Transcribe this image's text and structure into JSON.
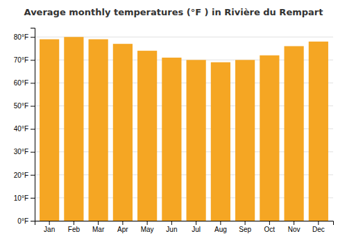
{
  "chart_data": {
    "type": "bar",
    "title": "Average monthly temperatures (°F ) in Rivière du Rempart",
    "categories": [
      "Jan",
      "Feb",
      "Mar",
      "Apr",
      "May",
      "Jun",
      "Jul",
      "Aug",
      "Sep",
      "Oct",
      "Nov",
      "Dec"
    ],
    "values": [
      79,
      80,
      79,
      77,
      74,
      71,
      70,
      69,
      70,
      72,
      76,
      78
    ],
    "color": "#F5A623",
    "ylim": [
      0,
      84
    ],
    "yticks": [
      {
        "value": 0,
        "label": "0°F"
      },
      {
        "value": 10,
        "label": "10°F"
      },
      {
        "value": 20,
        "label": "20°F"
      },
      {
        "value": 30,
        "label": "30°F"
      },
      {
        "value": 40,
        "label": "40°F"
      },
      {
        "value": 50,
        "label": "50°F"
      },
      {
        "value": 60,
        "label": "60°F"
      },
      {
        "value": 70,
        "label": "70°F"
      },
      {
        "value": 80,
        "label": "80°F"
      }
    ],
    "grid": true
  }
}
